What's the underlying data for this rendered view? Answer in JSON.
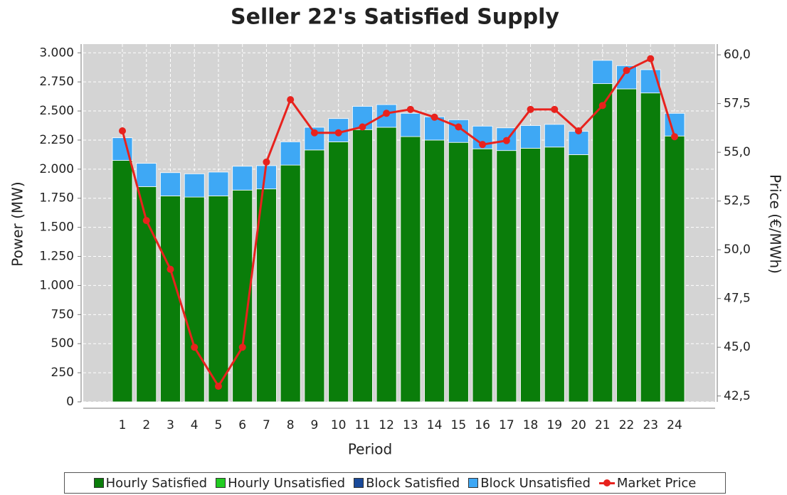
{
  "chart_data": {
    "type": "bar",
    "title": "Seller 22's Satisfied Supply",
    "x_label": "Period",
    "y_label": "Power (MW)",
    "y2_label": "Price (€/MWh)",
    "categories": [
      "1",
      "2",
      "3",
      "4",
      "5",
      "6",
      "7",
      "8",
      "9",
      "10",
      "11",
      "12",
      "13",
      "14",
      "15",
      "16",
      "17",
      "18",
      "19",
      "20",
      "21",
      "22",
      "23",
      "24"
    ],
    "series": [
      {
        "name": "Hourly Satisfied",
        "color": "#0a7d0a",
        "values": [
          2075,
          1850,
          1770,
          1760,
          1770,
          1820,
          1830,
          2035,
          2165,
          2235,
          2340,
          2360,
          2280,
          2250,
          2230,
          2175,
          2160,
          2180,
          2190,
          2125,
          2735,
          2690,
          2655,
          2285
        ]
      },
      {
        "name": "Hourly Unsatisfied",
        "color": "#22cc22",
        "values": [
          0,
          0,
          0,
          0,
          0,
          0,
          0,
          0,
          0,
          0,
          0,
          0,
          0,
          0,
          0,
          0,
          0,
          0,
          0,
          0,
          0,
          0,
          0,
          0
        ]
      },
      {
        "name": "Block Satisfied",
        "color": "#1a4a9a",
        "values": [
          0,
          0,
          0,
          0,
          0,
          0,
          0,
          0,
          0,
          0,
          0,
          0,
          0,
          0,
          0,
          0,
          0,
          0,
          0,
          0,
          0,
          0,
          0,
          0
        ]
      },
      {
        "name": "Block Unsatisfied",
        "color": "#3ea8f5",
        "values": [
          195,
          200,
          200,
          200,
          205,
          205,
          200,
          200,
          195,
          200,
          200,
          195,
          200,
          200,
          195,
          195,
          195,
          195,
          195,
          200,
          200,
          200,
          200,
          195
        ]
      },
      {
        "name": "Market Price",
        "color": "#e8221d",
        "axis": "y2",
        "values": [
          56.1,
          51.5,
          49.0,
          45.0,
          43.0,
          45.0,
          54.5,
          57.7,
          56.0,
          56.0,
          56.3,
          57.0,
          57.2,
          56.8,
          56.3,
          55.4,
          55.6,
          57.2,
          57.2,
          56.1,
          57.4,
          59.2,
          59.8,
          55.8
        ]
      }
    ],
    "ylim": [
      0,
      3075
    ],
    "yticks": [
      0,
      250,
      500,
      750,
      {
        "value": 1000,
        "label": "1.000"
      },
      {
        "value": 1250,
        "label": "1.250"
      },
      {
        "value": 1500,
        "label": "1.500"
      },
      {
        "value": 1750,
        "label": "1.750"
      },
      {
        "value": 2000,
        "label": "2.000"
      },
      {
        "value": 2250,
        "label": "2.250"
      },
      {
        "value": 2500,
        "label": "2.500"
      },
      {
        "value": 2750,
        "label": "2.750"
      },
      {
        "value": 3000,
        "label": "3.000"
      }
    ],
    "y2lim": [
      42.2,
      60.55
    ],
    "y2ticks": [
      {
        "value": 42.5,
        "label": "42,5"
      },
      {
        "value": 45,
        "label": "45,0"
      },
      {
        "value": 47.5,
        "label": "47,5"
      },
      {
        "value": 50,
        "label": "50,0"
      },
      {
        "value": 52.5,
        "label": "52,5"
      },
      {
        "value": 55,
        "label": "55,0"
      },
      {
        "value": 57.5,
        "label": "57,5"
      },
      {
        "value": 60,
        "label": "60,0"
      }
    ],
    "grid": true
  }
}
